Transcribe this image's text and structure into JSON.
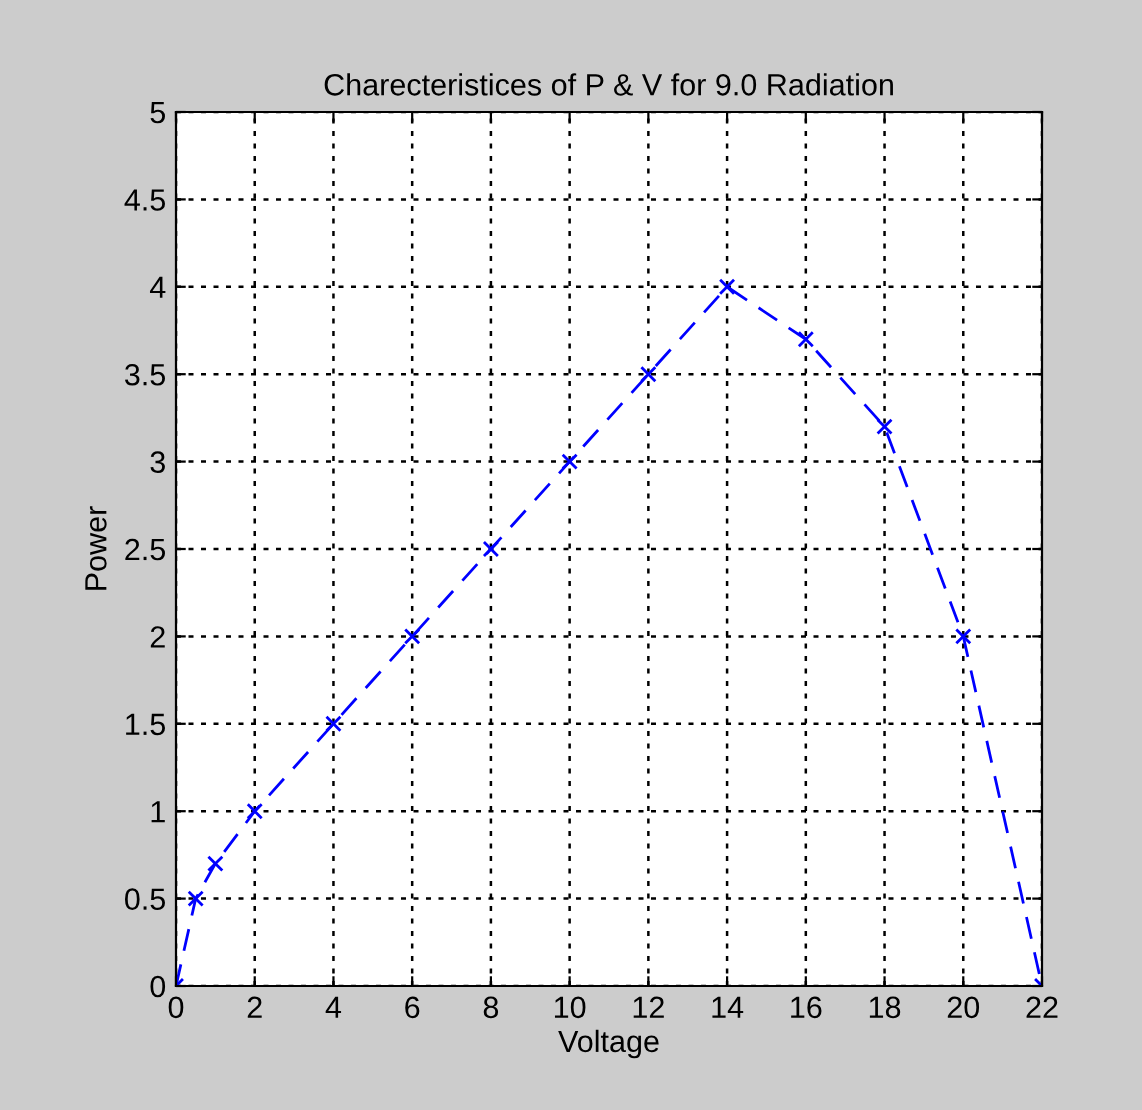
{
  "chart_data": {
    "type": "line",
    "title": "Charecteristices of P & V for 9.0 Radiation",
    "xlabel": "Voltage",
    "ylabel": "Power",
    "x": [
      0,
      0.5,
      1,
      2,
      4,
      6,
      8,
      10,
      12,
      14,
      16,
      18,
      20,
      22
    ],
    "series": [
      {
        "color": "#0000ff",
        "values": [
          0,
          0.5,
          0.7,
          1,
          1.5,
          2,
          2.5,
          3,
          3.5,
          4,
          3.7,
          3.2,
          2,
          0
        ]
      }
    ],
    "xlim": [
      0,
      22
    ],
    "xticks": [
      0,
      2,
      4,
      6,
      8,
      10,
      12,
      14,
      16,
      18,
      20,
      22
    ],
    "ylim": [
      0,
      5
    ],
    "yticks": [
      0,
      0.5,
      1,
      1.5,
      2,
      2.5,
      3,
      3.5,
      4,
      4.5,
      5
    ],
    "grid": true,
    "marker": "cross",
    "line_style": "dashed"
  }
}
